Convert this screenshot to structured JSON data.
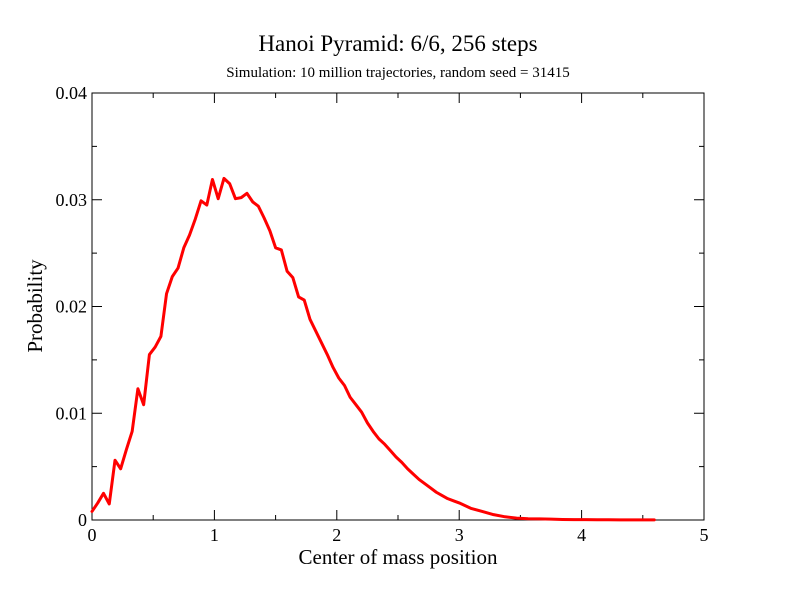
{
  "chart_data": {
    "type": "line",
    "title": "Hanoi Pyramid: 6/6, 256 steps",
    "subtitle": "Simulation: 10 million trajectories, random seed = 31415",
    "xlabel": "Center of mass position",
    "ylabel": "Probability",
    "xlim": [
      0,
      5
    ],
    "ylim": [
      0,
      0.04
    ],
    "x_ticks": [
      "0",
      "1",
      "2",
      "3",
      "4",
      "5"
    ],
    "y_ticks": [
      "0",
      "0.01",
      "0.02",
      "0.03",
      "0.04"
    ],
    "grid": false,
    "legend": "none",
    "series": [
      {
        "color": "#ff0000",
        "x": [
          0,
          0.047,
          0.094,
          0.141,
          0.188,
          0.234,
          0.281,
          0.328,
          0.375,
          0.422,
          0.469,
          0.516,
          0.563,
          0.609,
          0.656,
          0.703,
          0.75,
          0.797,
          0.844,
          0.891,
          0.938,
          0.984,
          1.031,
          1.078,
          1.125,
          1.172,
          1.219,
          1.266,
          1.313,
          1.359,
          1.406,
          1.453,
          1.5,
          1.547,
          1.594,
          1.641,
          1.688,
          1.734,
          1.781,
          1.828,
          1.875,
          1.922,
          1.969,
          2.016,
          2.063,
          2.109,
          2.156,
          2.203,
          2.25,
          2.297,
          2.344,
          2.391,
          2.438,
          2.484,
          2.531,
          2.578,
          2.625,
          2.672,
          2.719,
          2.766,
          2.813,
          2.859,
          2.906,
          2.953,
          3.0,
          3.094,
          3.188,
          3.281,
          3.375,
          3.469,
          3.563,
          3.656,
          3.75,
          3.844,
          3.938,
          4.031,
          4.125,
          4.219,
          4.313,
          4.406,
          4.5,
          4.594
        ],
        "values": [
          0.0008,
          0.0016,
          0.0025,
          0.0015,
          0.0056,
          0.0048,
          0.0066,
          0.0083,
          0.0123,
          0.0108,
          0.0155,
          0.0162,
          0.0172,
          0.0212,
          0.0228,
          0.0236,
          0.0255,
          0.0267,
          0.0282,
          0.0299,
          0.0295,
          0.0319,
          0.0301,
          0.032,
          0.0315,
          0.0301,
          0.0302,
          0.0306,
          0.0298,
          0.0294,
          0.0283,
          0.0271,
          0.0255,
          0.0253,
          0.0233,
          0.0227,
          0.0209,
          0.0206,
          0.0188,
          0.0177,
          0.0166,
          0.0155,
          0.0143,
          0.0133,
          0.0126,
          0.0115,
          0.0108,
          0.0101,
          0.0091,
          0.0083,
          0.0076,
          0.0071,
          0.0065,
          0.0059,
          0.0054,
          0.0048,
          0.0043,
          0.0038,
          0.0034,
          0.003,
          0.0026,
          0.0023,
          0.002,
          0.0018,
          0.0016,
          0.0011,
          0.0008,
          0.0005,
          0.0003,
          0.00018,
          0.00012,
          0.0001,
          8e-05,
          5e-05,
          4e-05,
          3e-05,
          2e-05,
          2e-05,
          1e-05,
          1e-05,
          1e-05,
          1e-05
        ]
      }
    ]
  }
}
